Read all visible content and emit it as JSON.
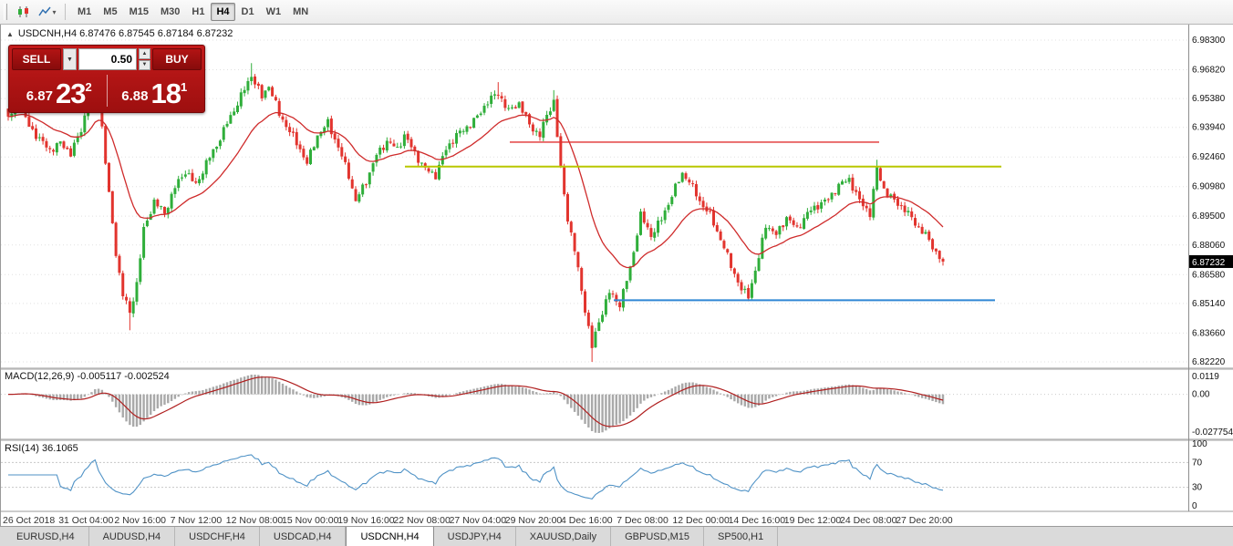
{
  "toolbar": {
    "timeframes": [
      "M1",
      "M5",
      "M15",
      "M30",
      "H1",
      "H4",
      "D1",
      "W1",
      "MN"
    ],
    "active_timeframe": "H4"
  },
  "icons": {
    "collapse": "▲",
    "dropdown_down": "▼",
    "spin_up": "▲",
    "spin_down": "▼",
    "menu_caret": "▾"
  },
  "symbol_header": {
    "text": "USDCNH,H4 6.87476 6.87545 6.87184 6.87232"
  },
  "trade_widget": {
    "sell_label": "SELL",
    "buy_label": "BUY",
    "volume": "0.50",
    "sell_price_small": "6.87",
    "sell_price_big": "23",
    "sell_price_sup": "2",
    "buy_price_small": "6.88",
    "buy_price_big": "18",
    "buy_price_sup": "1"
  },
  "price_scale": {
    "ticks": [
      "6.98300",
      "6.96820",
      "6.95380",
      "6.93940",
      "6.92460",
      "6.90980",
      "6.89500",
      "6.88060",
      "6.86580",
      "6.85140",
      "6.83660",
      "6.82220"
    ],
    "current": "6.87232"
  },
  "macd_panel": {
    "label": "MACD(12,26,9) -0.005117 -0.002524",
    "ticks": {
      "top": "0.0119",
      "zero": "0.00",
      "bottom": "-0.027754"
    }
  },
  "rsi_panel": {
    "label": "RSI(14) 36.1065",
    "ticks": [
      "100",
      "70",
      "30",
      "0"
    ],
    "levels": [
      70,
      30
    ]
  },
  "time_axis": {
    "labels": [
      "26 Oct 2018",
      "31 Oct 04:00",
      "2 Nov 16:00",
      "7 Nov 12:00",
      "12 Nov 08:00",
      "15 Nov 00:00",
      "19 Nov 16:00",
      "22 Nov 08:00",
      "27 Nov 04:00",
      "29 Nov 20:00",
      "4 Dec 16:00",
      "7 Dec 08:00",
      "12 Dec 00:00",
      "14 Dec 16:00",
      "19 Dec 12:00",
      "24 Dec 08:00",
      "27 Dec 20:00"
    ]
  },
  "tabs": {
    "items": [
      "EURUSD,H4",
      "AUDUSD,H4",
      "USDCHF,H4",
      "USDCAD,H4",
      "USDCNH,H4",
      "USDJPY,H4",
      "XAUUSD,Daily",
      "GBPUSD,M15",
      "SP500,H1"
    ],
    "active": "USDCNH,H4"
  },
  "chart_data": {
    "type": "candlestick",
    "symbol": "USDCNH",
    "timeframe": "H4",
    "ohlc_current": {
      "open": 6.87476,
      "high": 6.87545,
      "low": 6.87184,
      "close": 6.87232
    },
    "y_range": [
      6.8222,
      6.983
    ],
    "candle_count": 270,
    "last_close": 6.87232,
    "price_keypoints": [
      [
        0,
        6.944
      ],
      [
        3,
        6.951
      ],
      [
        6,
        6.94
      ],
      [
        9,
        6.9335
      ],
      [
        12,
        6.928
      ],
      [
        15,
        6.9315
      ],
      [
        18,
        6.9265
      ],
      [
        21,
        6.938
      ],
      [
        23,
        6.952
      ],
      [
        25,
        6.968
      ],
      [
        27,
        6.9395
      ],
      [
        29,
        6.9055
      ],
      [
        31,
        6.8765
      ],
      [
        33,
        6.856
      ],
      [
        35,
        6.8465
      ],
      [
        37,
        6.8615
      ],
      [
        39,
        6.888
      ],
      [
        42,
        6.9025
      ],
      [
        45,
        6.8965
      ],
      [
        48,
        6.9095
      ],
      [
        51,
        6.9175
      ],
      [
        54,
        6.9105
      ],
      [
        57,
        6.9215
      ],
      [
        60,
        6.9305
      ],
      [
        63,
        6.9415
      ],
      [
        66,
        6.9515
      ],
      [
        70,
        6.9655
      ],
      [
        73,
        6.9545
      ],
      [
        75,
        6.9605
      ],
      [
        78,
        6.946
      ],
      [
        81,
        6.9375
      ],
      [
        84,
        6.9285
      ],
      [
        86,
        6.9215
      ],
      [
        89,
        6.9355
      ],
      [
        92,
        6.9415
      ],
      [
        95,
        6.9295
      ],
      [
        98,
        6.9155
      ],
      [
        100,
        6.9025
      ],
      [
        103,
        6.9125
      ],
      [
        106,
        6.9255
      ],
      [
        109,
        6.9325
      ],
      [
        112,
        6.9285
      ],
      [
        114,
        6.9355
      ],
      [
        117,
        6.9265
      ],
      [
        120,
        6.9185
      ],
      [
        123,
        6.9155
      ],
      [
        126,
        6.9285
      ],
      [
        129,
        6.9355
      ],
      [
        132,
        6.9395
      ],
      [
        135,
        6.9445
      ],
      [
        138,
        6.9525
      ],
      [
        141,
        6.9565
      ],
      [
        144,
        6.9475
      ],
      [
        147,
        6.9515
      ],
      [
        150,
        6.9405
      ],
      [
        153,
        6.9355
      ],
      [
        155,
        6.9455
      ],
      [
        157,
        6.9525
      ],
      [
        159,
        6.918
      ],
      [
        161,
        6.894
      ],
      [
        163,
        6.878
      ],
      [
        165,
        6.858
      ],
      [
        168,
        6.8295
      ],
      [
        170,
        6.8425
      ],
      [
        173,
        6.857
      ],
      [
        176,
        6.851
      ],
      [
        179,
        6.869
      ],
      [
        182,
        6.8955
      ],
      [
        185,
        6.8855
      ],
      [
        188,
        6.8935
      ],
      [
        191,
        6.9055
      ],
      [
        194,
        6.9165
      ],
      [
        196,
        6.9125
      ],
      [
        199,
        6.9025
      ],
      [
        202,
        6.8955
      ],
      [
        205,
        6.8835
      ],
      [
        208,
        6.8705
      ],
      [
        211,
        6.858
      ],
      [
        213,
        6.8555
      ],
      [
        216,
        6.874
      ],
      [
        218,
        6.891
      ],
      [
        221,
        6.8855
      ],
      [
        224,
        6.8945
      ],
      [
        227,
        6.8885
      ],
      [
        230,
        6.8965
      ],
      [
        233,
        6.9005
      ],
      [
        236,
        6.9035
      ],
      [
        239,
        6.9105
      ],
      [
        242,
        6.9135
      ],
      [
        245,
        6.9025
      ],
      [
        248,
        6.8965
      ],
      [
        250,
        6.9185
      ],
      [
        252,
        6.9085
      ],
      [
        255,
        6.9025
      ],
      [
        258,
        6.8985
      ],
      [
        261,
        6.8915
      ],
      [
        264,
        6.8855
      ],
      [
        267,
        6.877
      ],
      [
        269,
        6.8723
      ]
    ],
    "wick_low_overrides": {
      "35": 6.838,
      "168": 6.8222,
      "213": 6.8525
    },
    "wick_high_overrides": {
      "25": 6.976,
      "70": 6.9715,
      "141": 6.962,
      "157": 6.958,
      "250": 6.9232
    },
    "ma": {
      "period": 21
    },
    "hlines": [
      {
        "name": "resistance-line-red",
        "price": 6.932,
        "color": "#e03030",
        "x1": 558,
        "x2": 963,
        "width": 1.4
      },
      {
        "name": "resistance-line-yellow",
        "price": 6.9198,
        "color": "#b9c700",
        "x1": 443,
        "x2": 1097,
        "width": 2
      },
      {
        "name": "support-line-blue",
        "price": 6.853,
        "color": "#2f86d4",
        "x1": 672,
        "x2": 1090,
        "width": 2
      }
    ],
    "macd": {
      "fast": 12,
      "slow": 26,
      "signal": 9,
      "value": -0.005117,
      "signal_value": -0.002524
    },
    "rsi": {
      "period": 14,
      "value": 36.1065
    },
    "colors": {
      "up": "#2fae3a",
      "down": "#e2342e",
      "ma": "#cf2b2b",
      "macd_hist": "#a9a9a9",
      "macd_signal": "#b02020",
      "rsi": "#4f92c6",
      "grid": "#e0e0e0",
      "badge_bg": "#000000",
      "badge_text": "#ffffff"
    }
  }
}
